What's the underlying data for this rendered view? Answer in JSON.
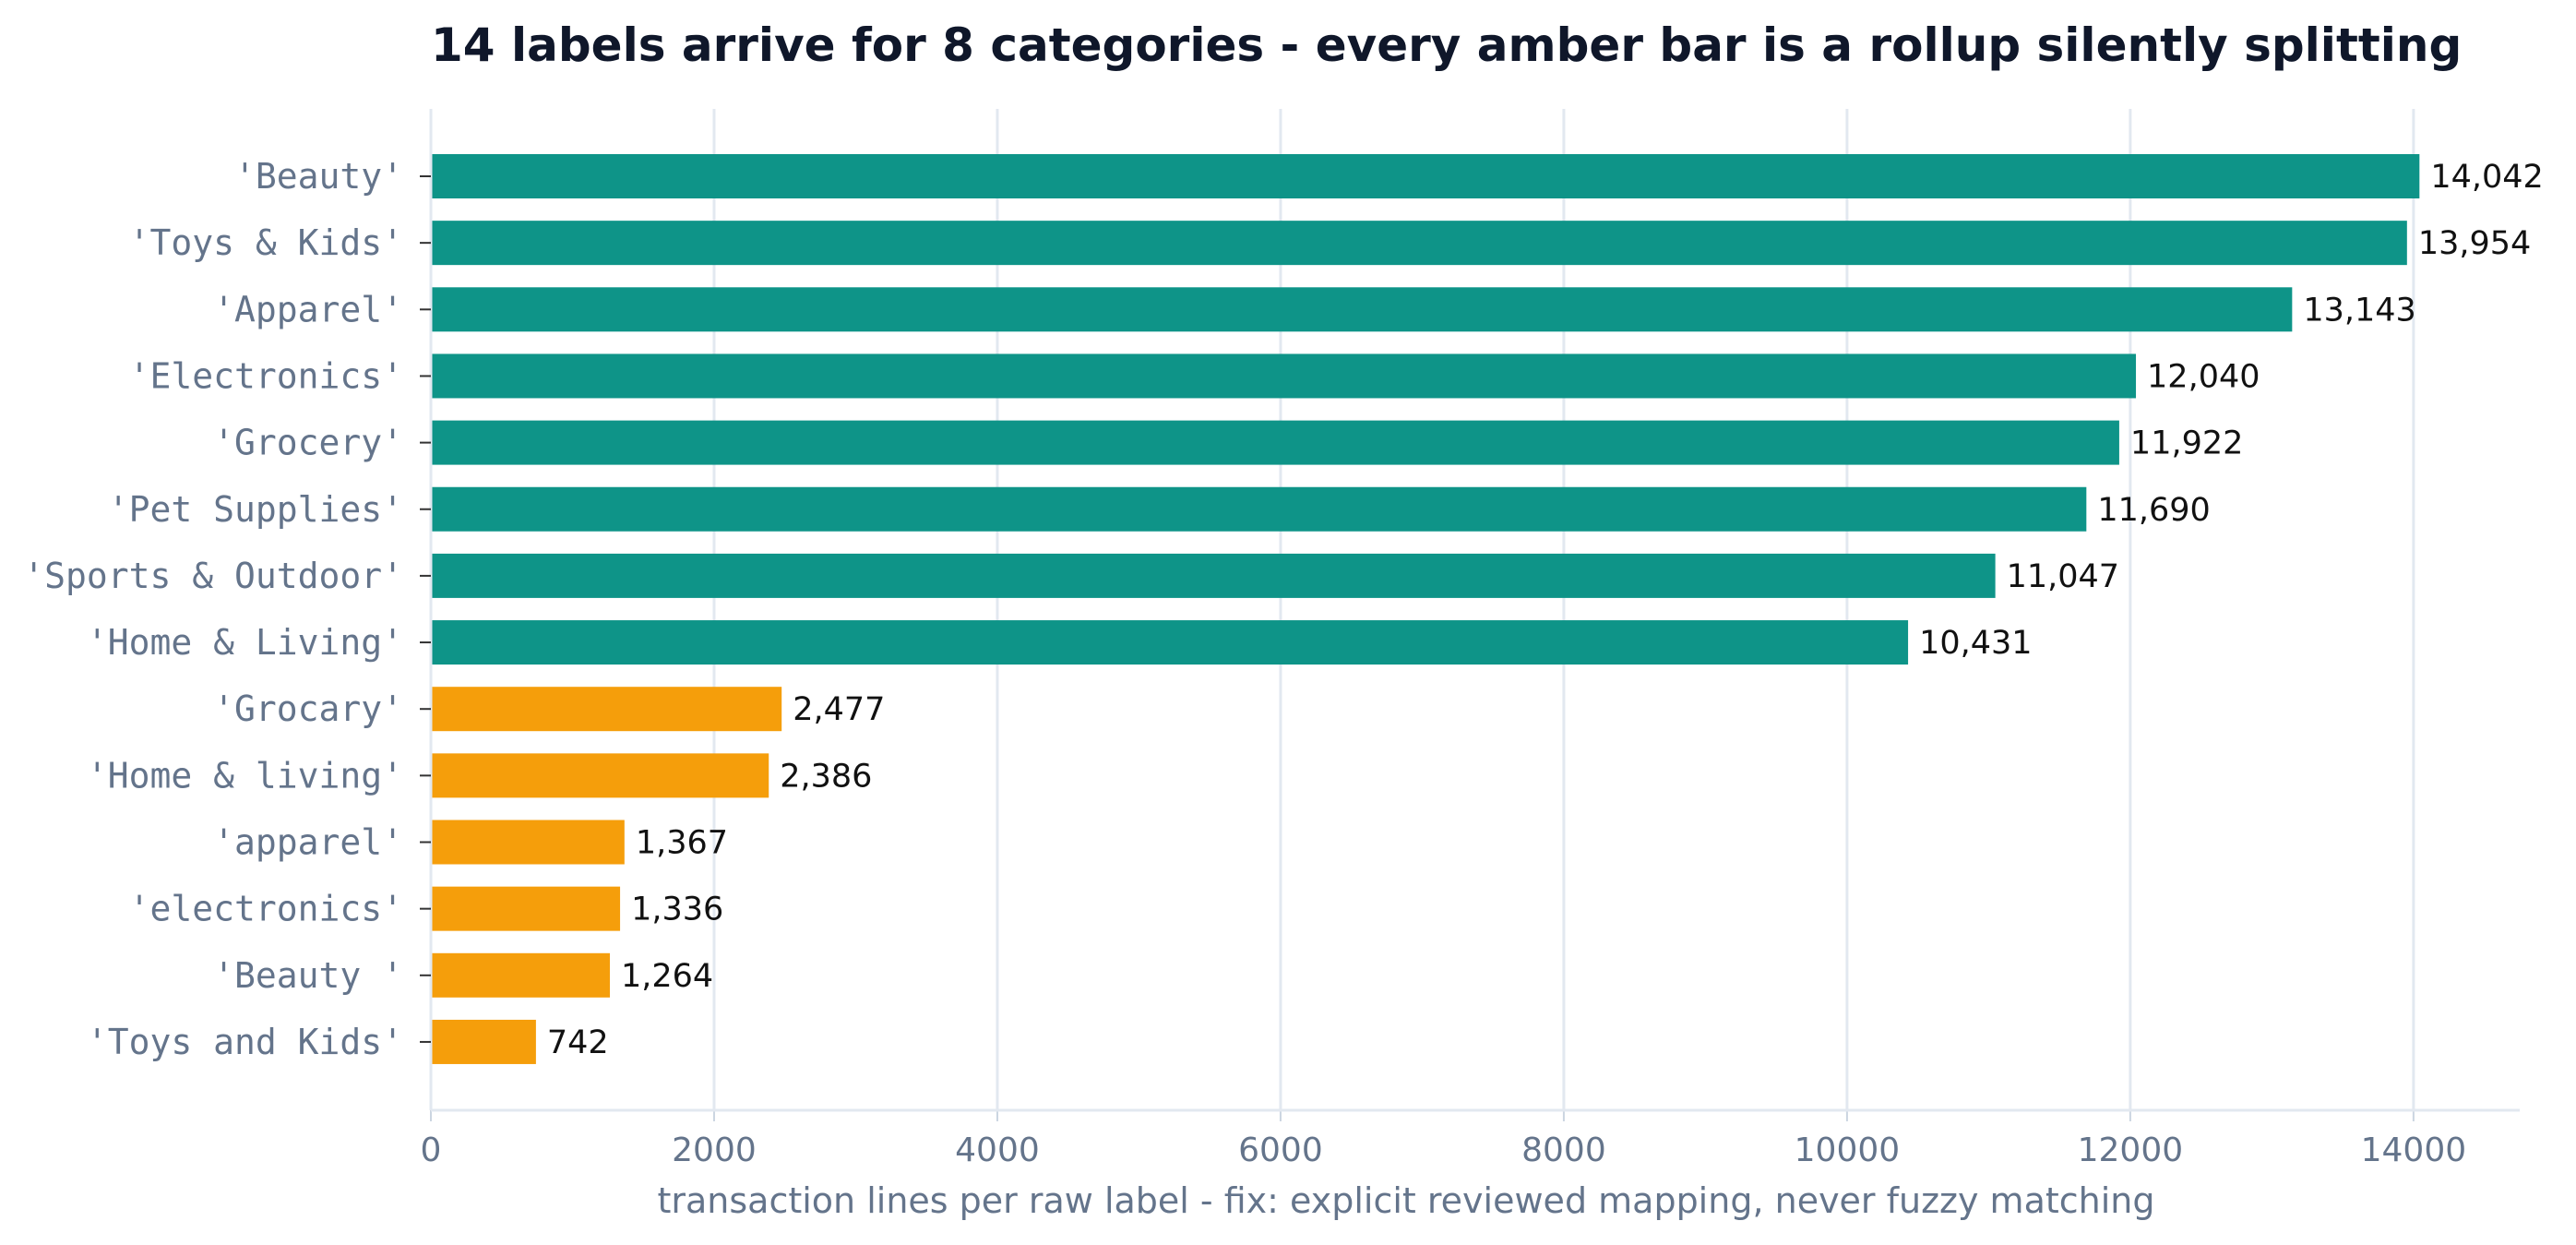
{
  "chart_data": {
    "type": "bar",
    "orientation": "horizontal",
    "title": "14 labels arrive for 8 categories - every amber bar is a rollup silently splitting",
    "xlabel": "transaction lines per raw label - fix: explicit reviewed mapping, never fuzzy matching",
    "ylabel": "",
    "xlim": [
      0,
      14750
    ],
    "xticks": [
      0,
      2000,
      4000,
      6000,
      8000,
      10000,
      12000,
      14000
    ],
    "grid": "vertical",
    "colors": {
      "canonical": "#0e9488",
      "variant": "#f59e0b",
      "grid": "#e2e8f0",
      "axis": "#cbd5e1"
    },
    "categories": [
      "'Beauty'",
      "'Toys & Kids'",
      "'Apparel'",
      "'Electronics'",
      "'Grocery'",
      "'Pet Supplies'",
      "'Sports & Outdoor'",
      "'Home & Living'",
      "'Grocary'",
      "'Home & living'",
      "'apparel'",
      "'electronics'",
      "'Beauty '",
      "'Toys and Kids'"
    ],
    "values": [
      14042,
      13954,
      13143,
      12040,
      11922,
      11690,
      11047,
      10431,
      2477,
      2386,
      1367,
      1336,
      1264,
      742
    ],
    "value_labels": [
      "14,042",
      "13,954",
      "13,143",
      "12,040",
      "11,922",
      "11,690",
      "11,047",
      "10,431",
      "2,477",
      "2,386",
      "1,367",
      "1,336",
      "1,264",
      "742"
    ],
    "bar_group": [
      "canonical",
      "canonical",
      "canonical",
      "canonical",
      "canonical",
      "canonical",
      "canonical",
      "canonical",
      "variant",
      "variant",
      "variant",
      "variant",
      "variant",
      "variant"
    ]
  }
}
